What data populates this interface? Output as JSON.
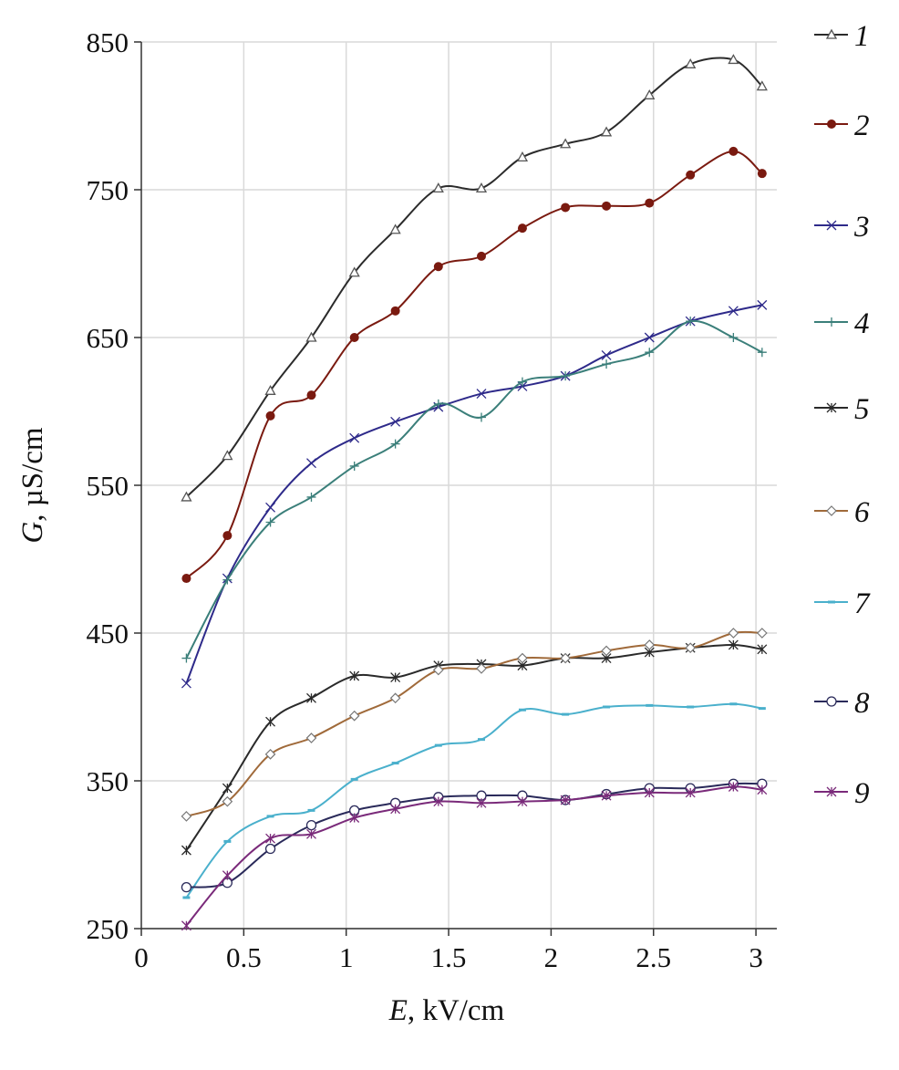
{
  "chart_data": {
    "type": "line",
    "xlabel_italic": "E",
    "xlabel_rest": ", kV/cm",
    "ylabel_italic": "G",
    "ylabel_rest": ", µS/cm",
    "xlim": [
      0,
      3.1
    ],
    "ylim": [
      250,
      850
    ],
    "xticks": [
      0,
      0.5,
      1,
      1.5,
      2,
      2.5,
      3
    ],
    "xtick_labels": [
      "0",
      "0.5",
      "1",
      "1.5",
      "2",
      "2.5",
      "3"
    ],
    "yticks": [
      250,
      350,
      450,
      550,
      650,
      750,
      850
    ],
    "ytick_labels": [
      "250",
      "350",
      "450",
      "550",
      "650",
      "750",
      "850"
    ],
    "grid": true,
    "legend_placement": "right",
    "x": [
      0.22,
      0.42,
      0.63,
      0.83,
      1.04,
      1.24,
      1.45,
      1.66,
      1.86,
      2.07,
      2.27,
      2.48,
      2.68,
      2.89,
      3.03
    ],
    "series": [
      {
        "name": "1",
        "marker": "triangle",
        "color": "#2b2b2b",
        "values": [
          542,
          570,
          614,
          650,
          694,
          723,
          751,
          751,
          772,
          781,
          789,
          814,
          835,
          838,
          820
        ]
      },
      {
        "name": "2",
        "marker": "dot",
        "color": "#7a1a10",
        "values": [
          487,
          516,
          597,
          611,
          650,
          668,
          698,
          705,
          724,
          738,
          739,
          741,
          760,
          776,
          761
        ]
      },
      {
        "name": "3",
        "marker": "x",
        "color": "#2e2a8a",
        "values": [
          416,
          487,
          535,
          565,
          582,
          593,
          603,
          612,
          617,
          624,
          638,
          650,
          661,
          668,
          672
        ]
      },
      {
        "name": "4",
        "marker": "plus",
        "color": "#3b7f7a",
        "values": [
          433,
          486,
          525,
          542,
          563,
          578,
          605,
          596,
          620,
          624,
          632,
          640,
          661,
          650,
          640
        ]
      },
      {
        "name": "5",
        "marker": "star",
        "color": "#2a2a2a",
        "values": [
          303,
          345,
          390,
          406,
          421,
          420,
          428,
          429,
          428,
          433,
          433,
          437,
          440,
          442,
          439
        ]
      },
      {
        "name": "6",
        "marker": "diamond",
        "color": "#a06a3a",
        "values": [
          326,
          336,
          368,
          379,
          394,
          406,
          425,
          426,
          433,
          433,
          438,
          442,
          440,
          450,
          450
        ]
      },
      {
        "name": "7",
        "marker": "dash",
        "color": "#4ab0cc",
        "values": [
          271,
          309,
          326,
          330,
          351,
          362,
          374,
          378,
          398,
          395,
          400,
          401,
          400,
          402,
          399
        ]
      },
      {
        "name": "8",
        "marker": "circle",
        "color": "#2a2a5a",
        "values": [
          278,
          281,
          304,
          320,
          330,
          335,
          339,
          340,
          340,
          337,
          341,
          345,
          345,
          348,
          348
        ]
      },
      {
        "name": "9",
        "marker": "star",
        "color": "#7a2a7a",
        "values": [
          252,
          286,
          311,
          314,
          325,
          331,
          336,
          335,
          336,
          337,
          340,
          342,
          342,
          346,
          344
        ]
      }
    ]
  }
}
